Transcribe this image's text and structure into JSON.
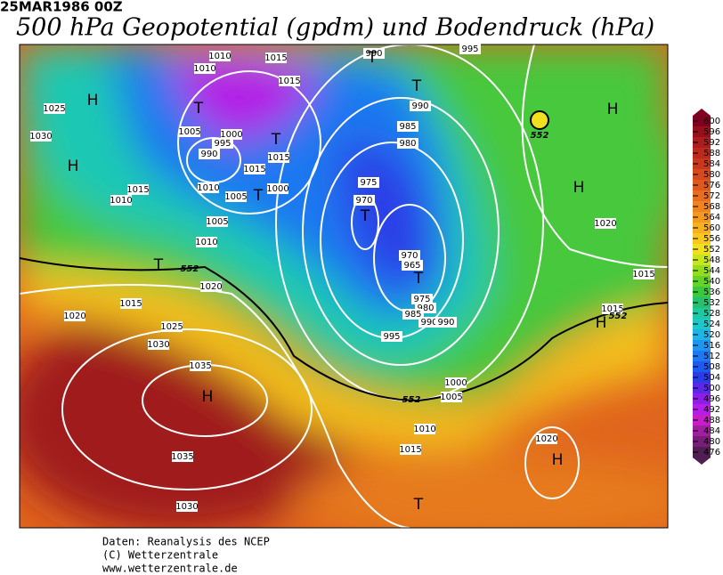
{
  "header": {
    "date": "25MAR1986 00Z",
    "title": "500 hPa Geopotential (gpdm) und Bodendruck (hPa)"
  },
  "map": {
    "isobar_labels": [
      1010,
      1010,
      1015,
      990,
      995,
      1015,
      1025,
      990,
      1005,
      1000,
      995,
      1015,
      985,
      990,
      1030,
      980,
      1015,
      1010,
      1005,
      1000,
      975,
      1015,
      1010,
      970,
      1005,
      1010,
      970,
      965,
      1020,
      1015,
      975,
      980,
      1020,
      985,
      990,
      990,
      1025,
      995,
      1030,
      1000,
      1035,
      1005,
      1010,
      1015,
      1020,
      1035,
      1030,
      1020,
      1015,
      1015
    ],
    "contour_labels": [
      552,
      552,
      552,
      552
    ],
    "pressure_centers": [
      "H",
      "T",
      "T",
      "H",
      "T",
      "T",
      "T",
      "H",
      "H",
      "T",
      "T",
      "T",
      "H",
      "H",
      "H",
      "T"
    ]
  },
  "colorbar": {
    "ticks": [
      600,
      596,
      592,
      588,
      584,
      580,
      576,
      572,
      568,
      564,
      560,
      556,
      552,
      548,
      544,
      540,
      536,
      532,
      528,
      524,
      520,
      516,
      512,
      508,
      504,
      500,
      496,
      492,
      488,
      484,
      480,
      476
    ],
    "colors": [
      "#800020",
      "#96101c",
      "#aa1e1e",
      "#bc2a1e",
      "#c8381e",
      "#d24a1e",
      "#dc5a1e",
      "#e66e1e",
      "#ee8420",
      "#f29a20",
      "#f6b020",
      "#f8c81e",
      "#f0e01e",
      "#c8e61e",
      "#96dc1e",
      "#64d228",
      "#3cc83c",
      "#28c070",
      "#1ec8a0",
      "#1ec8c8",
      "#1eb4e6",
      "#1e96f0",
      "#1e78f0",
      "#1e5af0",
      "#2a3ce6",
      "#5a28e6",
      "#8c1ee6",
      "#b41ee6",
      "#c81ec8",
      "#a01ea0",
      "#781e78",
      "#501e50"
    ]
  },
  "footer": {
    "lines": [
      "Daten: Reanalysis des NCEP",
      "(C) Wetterzentrale",
      "www.wetterzentrale.de"
    ]
  }
}
